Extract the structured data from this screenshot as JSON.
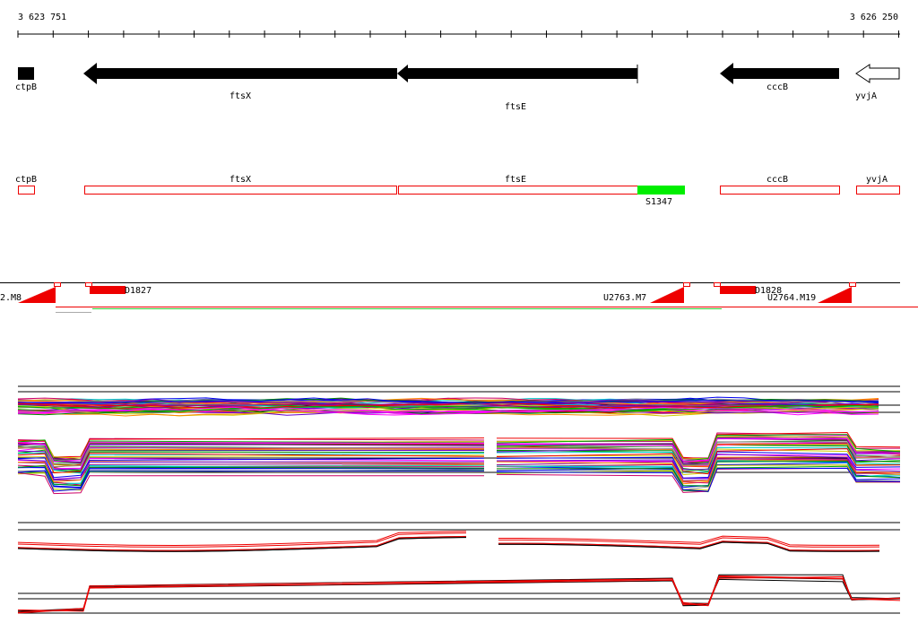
{
  "ruler": {
    "start": "3 623 751",
    "end": "3 626 250"
  },
  "genes": [
    {
      "label": "ctpB"
    },
    {
      "label": "ftsX"
    },
    {
      "label": "ftsE"
    },
    {
      "label": "cccB"
    },
    {
      "label": "yvjA"
    }
  ],
  "segments": [
    {
      "label": "ctpB"
    },
    {
      "label": "ftsX"
    },
    {
      "label": "ftsE"
    },
    {
      "label": "S1347"
    },
    {
      "label": "cccB"
    },
    {
      "label": "yvjA"
    }
  ],
  "transcripts": [
    {
      "label": "2.M8"
    },
    {
      "label": "D1827"
    },
    {
      "label": "U2763.M7"
    },
    {
      "label": "D1828"
    },
    {
      "label": "U2764.M19"
    }
  ]
}
